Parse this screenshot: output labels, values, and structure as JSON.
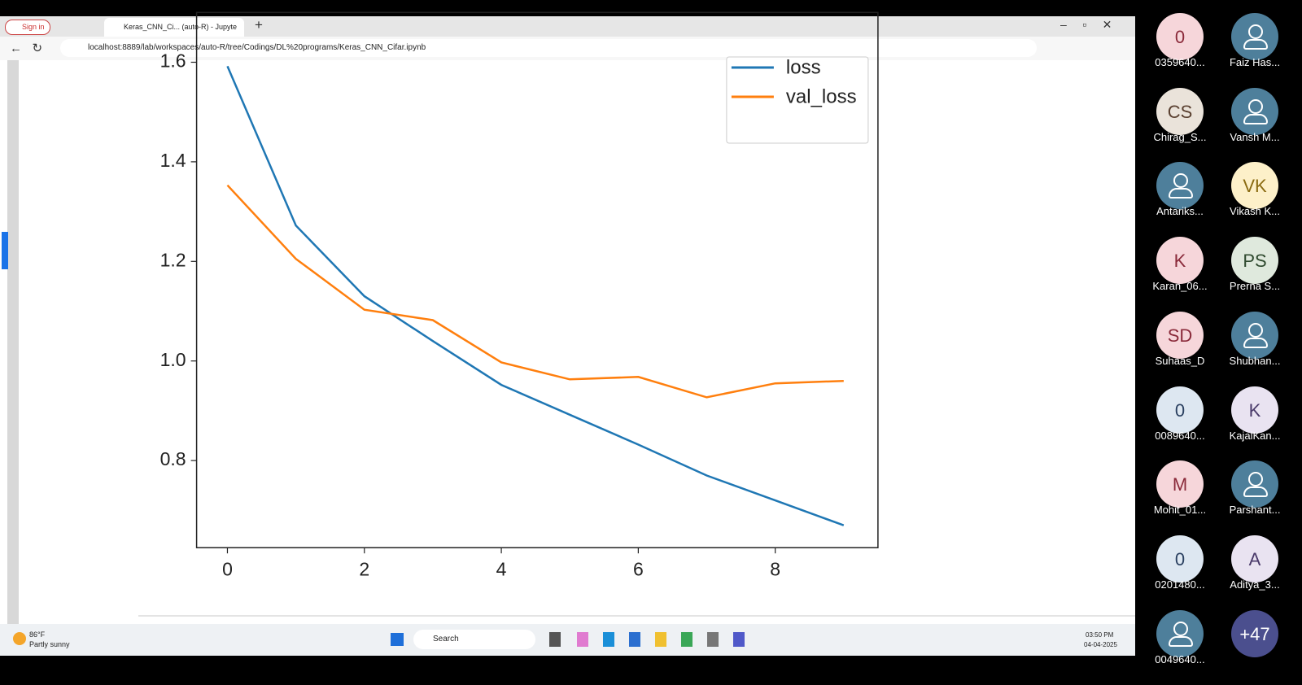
{
  "browser": {
    "sign_in": "Sign in",
    "tab_title": "Keras_CNN_Ci... (auto-R) - Jupyte",
    "url": "localhost:8889/lab/workspaces/auto-R/tree/Codings/DL%20programs/Keras_CNN_Cifar.ipynb"
  },
  "chart_data": {
    "type": "line",
    "x": [
      0,
      1,
      2,
      3,
      4,
      5,
      6,
      7,
      8,
      9
    ],
    "series": [
      {
        "name": "loss",
        "color": "#1f77b4",
        "values": [
          1.592,
          1.272,
          1.13,
          1.04,
          0.952,
          0.892,
          0.832,
          0.77,
          0.72,
          0.67
        ]
      },
      {
        "name": "val_loss",
        "color": "#ff7f0e",
        "values": [
          1.353,
          1.205,
          1.103,
          1.082,
          0.997,
          0.963,
          0.968,
          0.927,
          0.955,
          0.96
        ]
      }
    ],
    "xlim": [
      -0.45,
      9.5
    ],
    "ylim": [
      0.625,
      1.7
    ],
    "xticks": [
      0,
      2,
      4,
      6,
      8
    ],
    "yticks": [
      0.8,
      {
        "value": 1,
        "label": "1.0"
      },
      1.2,
      1.4,
      1.6
    ],
    "grid": false,
    "legend": "upper right"
  },
  "taskbar": {
    "temperature": "86°F",
    "weather": "Partly sunny",
    "search": "Search",
    "time": "03:50 PM",
    "date": "04-04-2025"
  },
  "participants": [
    {
      "initials": "0",
      "name": "0359640...",
      "color": "#f6d6da"
    },
    {
      "name": "Faiz Has...",
      "color": "#4e7f9b"
    },
    {
      "initials": "CS",
      "name": "Chirag_S...",
      "color": "#eae3da"
    },
    {
      "name": "Vansh M...",
      "color": "#4e7f9b"
    },
    {
      "name": "Antariks...",
      "color": "#4e7f9b"
    },
    {
      "initials": "VK",
      "name": "Vikash K...",
      "color": "#fdf0c9"
    },
    {
      "initials": "K",
      "name": "Karan_06...",
      "color": "#f6d6da"
    },
    {
      "initials": "PS",
      "name": "Prerna S...",
      "color": "#dfe9dd"
    },
    {
      "initials": "SD",
      "name": "Suhaas_D",
      "color": "#f6d6da"
    },
    {
      "name": "Shubhan...",
      "color": "#4e7f9b"
    },
    {
      "initials": "0",
      "name": "0089640...",
      "color": "#dde7f1"
    },
    {
      "initials": "K",
      "name": "KajalKan...",
      "color": "#e9e3f1"
    },
    {
      "initials": "M",
      "name": "Mohit_01...",
      "color": "#f6d6da"
    },
    {
      "name": "Parshant...",
      "color": "#4e7f9b"
    },
    {
      "initials": "0",
      "name": "0201480...",
      "color": "#dde7f1"
    },
    {
      "initials": "A",
      "name": "Aditya_3...",
      "color": "#e9e3f1"
    },
    {
      "name": "0049640...",
      "color": "#4e7f9b"
    },
    {
      "initials": "+47",
      "color": "#4b4f8e"
    }
  ]
}
